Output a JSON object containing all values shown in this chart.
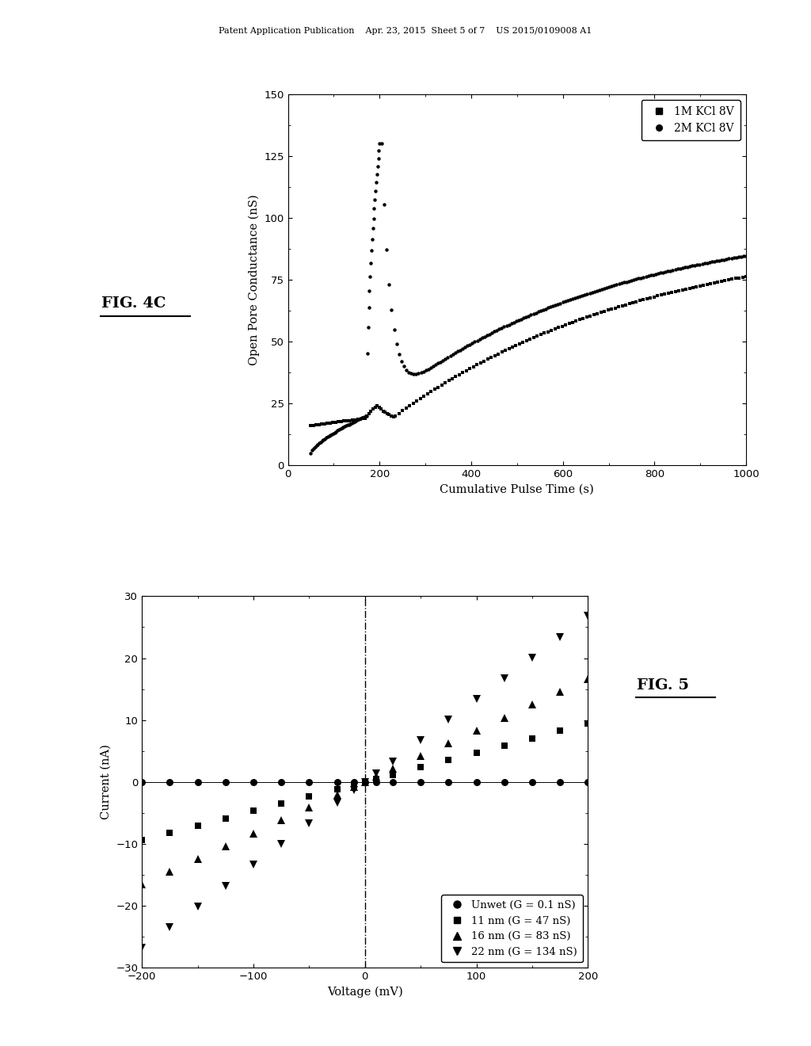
{
  "background_color": "#ffffff",
  "header_text": "Patent Application Publication    Apr. 23, 2015  Sheet 5 of 7    US 2015/0109008 A1",
  "fig4c_label": "FIG. 4C",
  "fig4c_xlabel": "Cumulative Pulse Time (s)",
  "fig4c_ylabel": "Open Pore Conductance (nS)",
  "fig4c_xlim": [
    0,
    1000
  ],
  "fig4c_ylim": [
    0,
    150
  ],
  "fig4c_xticks": [
    0,
    200,
    400,
    600,
    800,
    1000
  ],
  "fig4c_yticks": [
    0,
    25,
    50,
    75,
    100,
    125,
    150
  ],
  "fig4c_legend": [
    "1M KCl 8V",
    "2M KCl 8V"
  ],
  "fig5_label": "FIG. 5",
  "fig5_xlabel": "Voltage (mV)",
  "fig5_ylabel": "Current (nA)",
  "fig5_xlim": [
    -200,
    200
  ],
  "fig5_ylim": [
    -30,
    30
  ],
  "fig5_xticks": [
    -200,
    -100,
    0,
    100,
    200
  ],
  "fig5_yticks": [
    -30,
    -20,
    -10,
    0,
    10,
    20,
    30
  ],
  "fig5_legend": [
    "Unwet (G = 0.1 nS)",
    "11 nm (G = 47 nS)",
    "16 nm (G = 83 nS)",
    "22 nm (G = 134 nS)"
  ]
}
